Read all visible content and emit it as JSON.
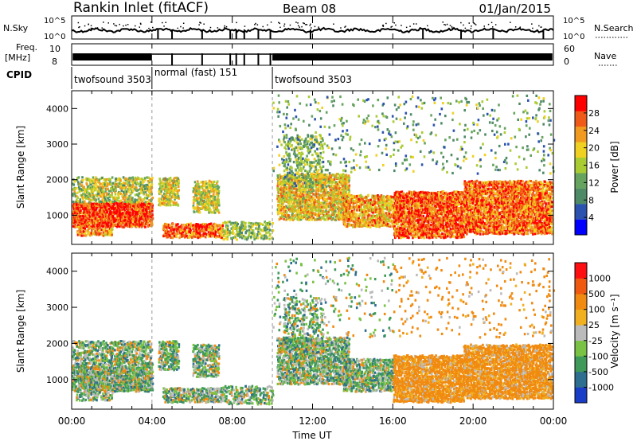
{
  "header": {
    "title": "Rankin Inlet (fitACF)",
    "beam": "Beam 08",
    "date": "01/Jan/2015"
  },
  "strip_labels": {
    "nsky": "N.Sky",
    "nsearch": "N.Search",
    "freq_line1": "Freq.",
    "freq_line2": "[MHz]",
    "nave": "Nave",
    "cpid": "CPID",
    "nsky_ticks": [
      "10^5",
      "10^0"
    ],
    "nsearch_ticks": [
      "10^5",
      "10^0"
    ],
    "freq_ticks": [
      "10",
      "8"
    ],
    "nave_ticks": [
      "60",
      "0"
    ]
  },
  "cpid_segments": [
    {
      "label": "twofsound  3503",
      "start_hour": 0.0,
      "end_hour": 4.0
    },
    {
      "label": "normal (fast)  151",
      "start_hour": 4.0,
      "end_hour": 10.0
    },
    {
      "label": "twofsound  3503",
      "start_hour": 10.0,
      "end_hour": 24.0
    }
  ],
  "chart_data": [
    {
      "type": "heatmap",
      "panel": "power",
      "ylabel": "Slant Range [km]",
      "ylim": [
        180,
        4500
      ],
      "yticks": [
        "4000",
        "3000",
        "2000",
        "1000"
      ],
      "xlim_hours": [
        0,
        24
      ],
      "colorbar_label": "Power [dB]",
      "colorbar_ticks": [
        "28",
        "24",
        "20",
        "16",
        "12",
        "8",
        "4"
      ],
      "colors": [
        "#0000ff",
        "#2c52b0",
        "#4e8a66",
        "#66a35e",
        "#aacc33",
        "#f0d020",
        "#f09a20",
        "#f05a18",
        "#ff0000"
      ]
    },
    {
      "type": "heatmap",
      "panel": "velocity",
      "ylabel": "Slant Range [km]",
      "ylim": [
        180,
        4500
      ],
      "yticks": [
        "4000",
        "3000",
        "2000",
        "1000"
      ],
      "xlim_hours": [
        0,
        24
      ],
      "colorbar_label": "Velocity [m s⁻¹]",
      "colorbar_ticks": [
        "1000",
        "500",
        "100",
        "25",
        "-25",
        "-100",
        "-500",
        "-1000"
      ],
      "colors": [
        "#1a3dc8",
        "#2e6e8e",
        "#3f9a5a",
        "#79c243",
        "#bbbbbb",
        "#f0b020",
        "#f08a10",
        "#f05a10",
        "#ff1010"
      ]
    }
  ],
  "xaxis": {
    "label": "Time UT",
    "ticks": [
      "00:00",
      "04:00",
      "08:00",
      "12:00",
      "16:00",
      "20:00",
      "00:00"
    ]
  }
}
